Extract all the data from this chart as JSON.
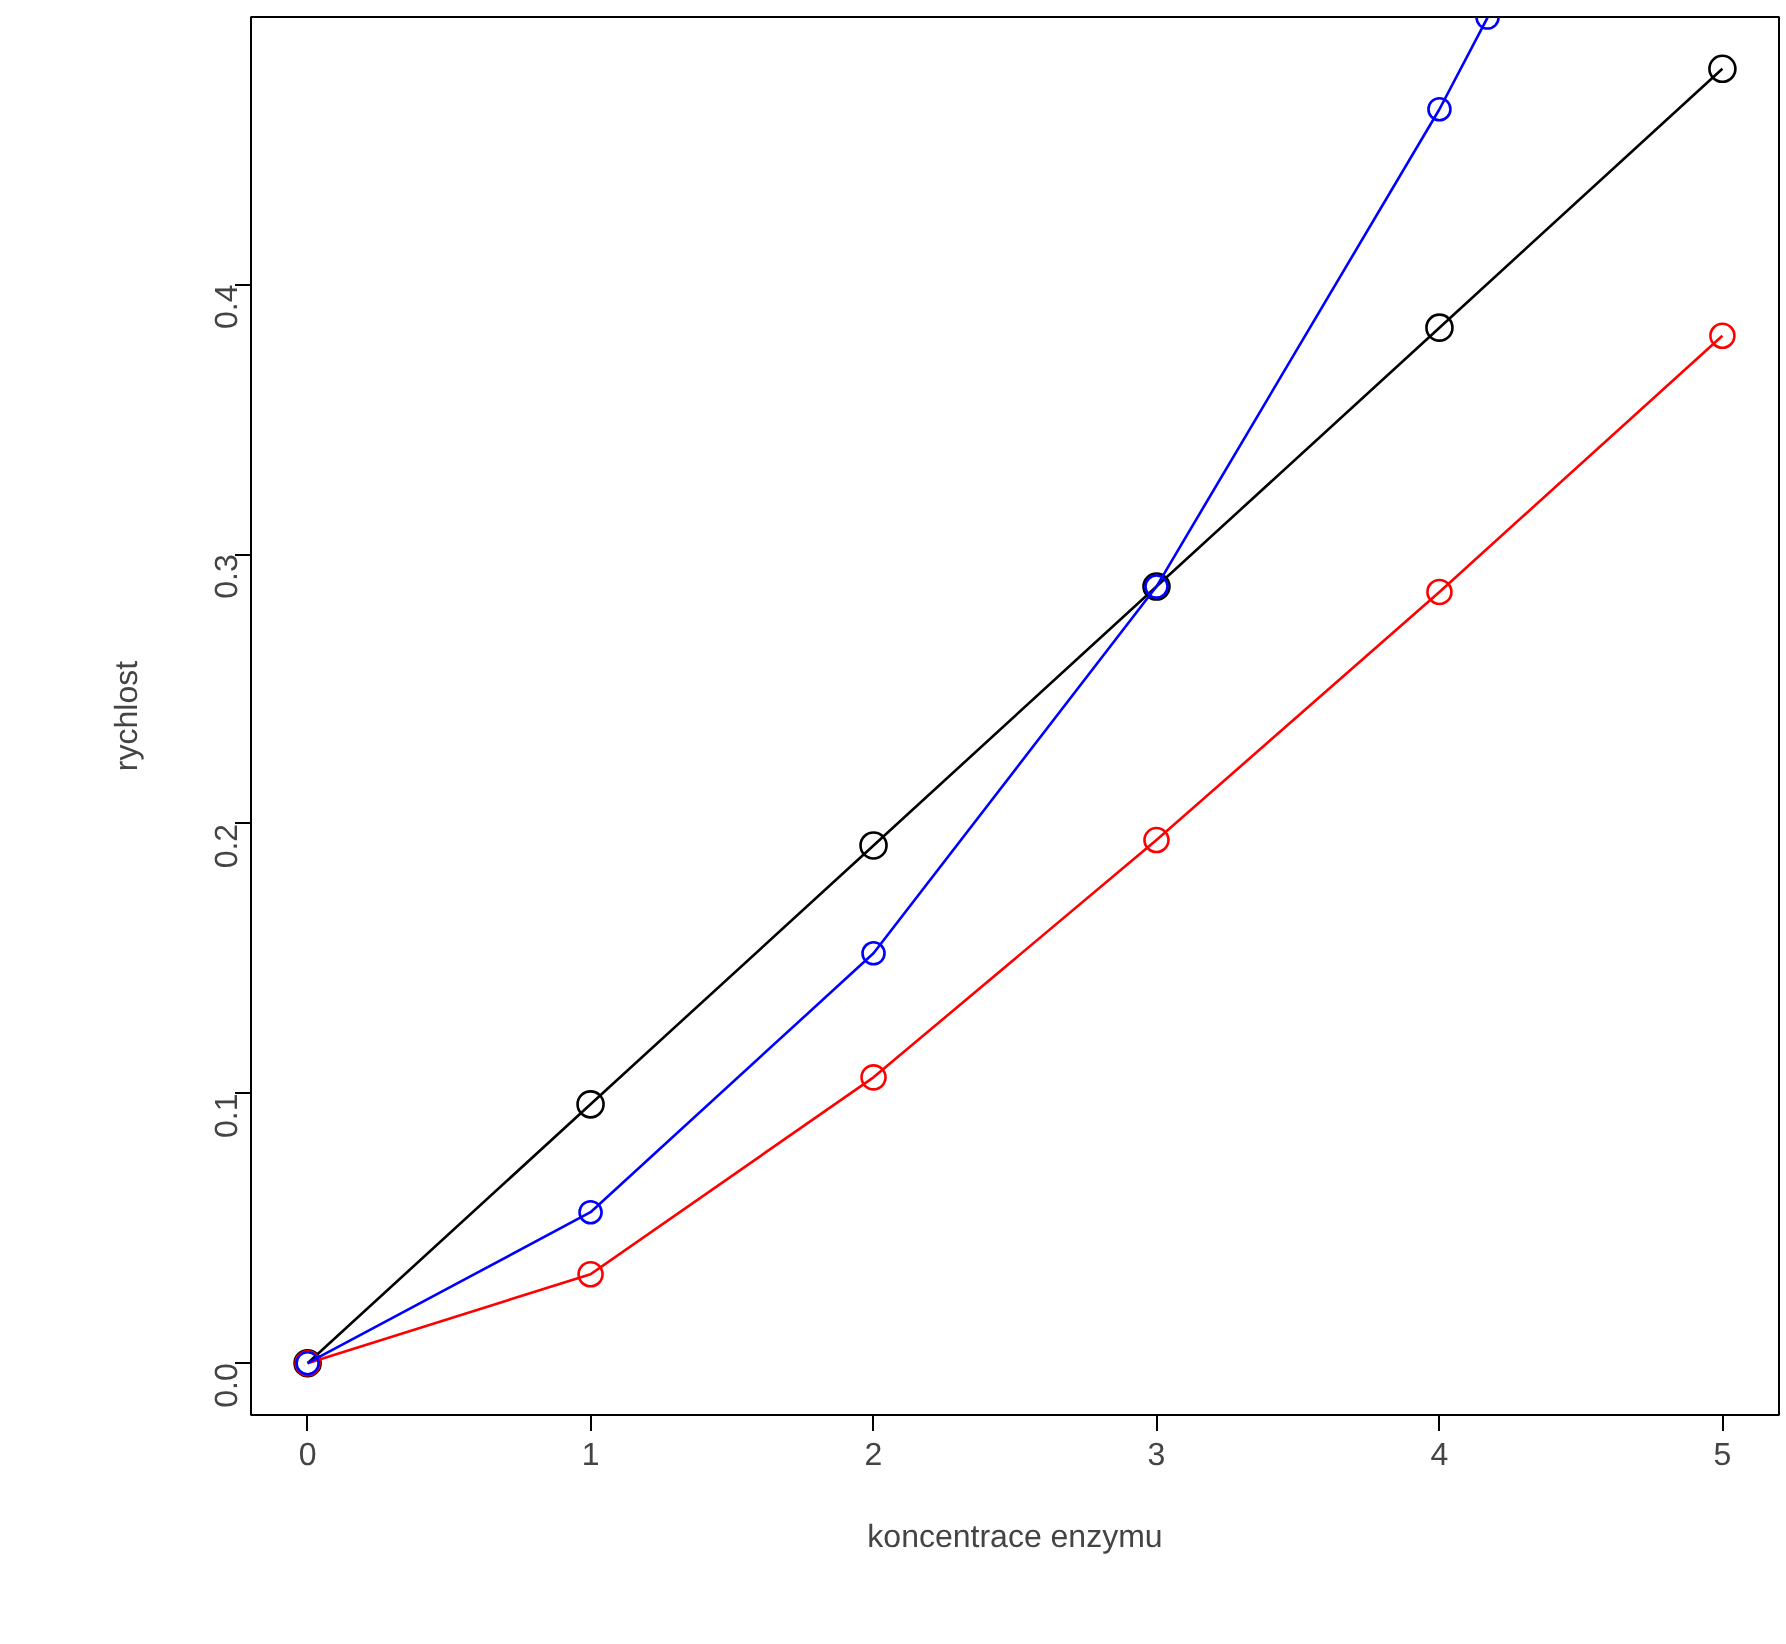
{
  "chart_data": {
    "type": "line",
    "xlabel": "koncentrace enzymu",
    "ylabel": "rychlost",
    "x": [
      0,
      1,
      2,
      3,
      4,
      5
    ],
    "series": [
      {
        "color": "#000000",
        "values": [
          0,
          0.096,
          0.192,
          0.288,
          0.384,
          0.48
        ]
      },
      {
        "color": "#ff0000",
        "values": [
          0,
          0.033,
          0.106,
          0.194,
          0.286,
          0.381
        ]
      },
      {
        "color": "#0000ff",
        "x": [
          0,
          1,
          2,
          3,
          4,
          4.17
        ],
        "values": [
          0,
          0.056,
          0.152,
          0.288,
          0.465,
          0.499
        ]
      }
    ],
    "xlim": [
      -0.2,
      5.2
    ],
    "ylim": [
      -0.0192,
      0.4992
    ],
    "xticks": [
      0,
      1,
      2,
      3,
      4,
      5
    ],
    "yticks": [
      {
        "value": 0,
        "label": "0.0"
      },
      {
        "value": 0.1,
        "label": "0.1"
      },
      {
        "value": 0.2,
        "label": "0.2"
      },
      {
        "value": 0.3,
        "label": "0.3"
      },
      {
        "value": 0.4,
        "label": "0.4"
      }
    ],
    "grid": false,
    "marker": "circle",
    "line_style": "solid"
  }
}
